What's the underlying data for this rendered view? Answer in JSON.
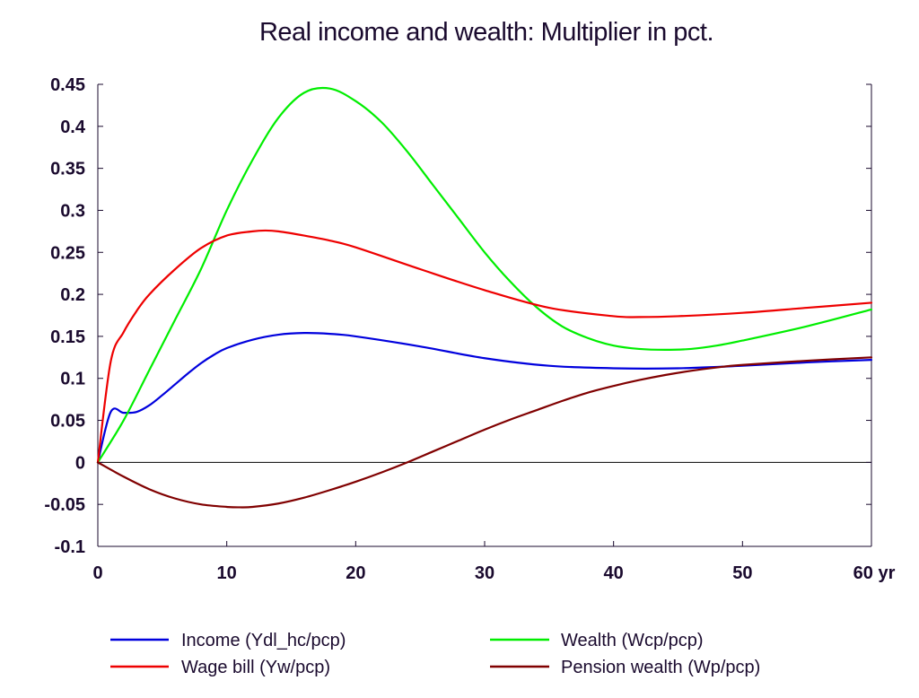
{
  "chart_data": {
    "type": "line",
    "title": "Real income and wealth: Multiplier in pct.",
    "xlabel": "",
    "ylabel": "",
    "x_unit_label": "yr",
    "xlim": [
      0,
      60
    ],
    "ylim": [
      -0.1,
      0.45
    ],
    "x_ticks": [
      0,
      10,
      20,
      30,
      40,
      50,
      60
    ],
    "y_ticks": [
      -0.1,
      -0.05,
      0,
      0.05,
      0.1,
      0.15,
      0.2,
      0.25,
      0.3,
      0.35,
      0.4,
      0.45
    ],
    "y_tick_labels": [
      "-0.1",
      "-0.05",
      "0",
      "0.05",
      "0.1",
      "0.15",
      "0.2",
      "0.25",
      "0.3",
      "0.35",
      "0.4",
      "0.45"
    ],
    "x_tick_labels": [
      "0",
      "10",
      "20",
      "30",
      "40",
      "50",
      "60 yr"
    ],
    "grid": false,
    "zero_line": true,
    "legend_position": "bottom",
    "series": [
      {
        "name": "Income (Ydl_hc/pcp)",
        "color": "#0000dd",
        "x": [
          0,
          1,
          2,
          3,
          4,
          5,
          6,
          7,
          8,
          9,
          10,
          12,
          14,
          16,
          18,
          20,
          25,
          30,
          35,
          40,
          45,
          50,
          55,
          60
        ],
        "y": [
          0,
          0.06,
          0.059,
          0.06,
          0.068,
          0.08,
          0.093,
          0.106,
          0.118,
          0.128,
          0.136,
          0.146,
          0.152,
          0.154,
          0.153,
          0.15,
          0.138,
          0.124,
          0.115,
          0.112,
          0.112,
          0.115,
          0.119,
          0.122
        ]
      },
      {
        "name": "Wealth (Wcp/pcp)",
        "color": "#00ee00",
        "x": [
          0,
          2,
          4,
          6,
          8,
          10,
          12,
          14,
          16,
          18,
          20,
          22,
          24,
          26,
          28,
          30,
          32,
          34,
          36,
          38,
          40,
          42,
          44,
          46,
          48,
          50,
          55,
          60
        ],
        "y": [
          0,
          0.05,
          0.11,
          0.17,
          0.23,
          0.3,
          0.36,
          0.41,
          0.44,
          0.445,
          0.43,
          0.405,
          0.37,
          0.33,
          0.29,
          0.25,
          0.215,
          0.185,
          0.162,
          0.148,
          0.139,
          0.135,
          0.134,
          0.135,
          0.139,
          0.145,
          0.162,
          0.182
        ]
      },
      {
        "name": "Wage bill (Yw/pcp)",
        "color": "#ee0000",
        "x": [
          0,
          1,
          2,
          3,
          4,
          6,
          8,
          10,
          12,
          13,
          14,
          16,
          18,
          20,
          25,
          30,
          35,
          40,
          42,
          45,
          50,
          55,
          60
        ],
        "y": [
          0,
          0.12,
          0.155,
          0.18,
          0.2,
          0.23,
          0.255,
          0.27,
          0.275,
          0.276,
          0.275,
          0.27,
          0.264,
          0.256,
          0.23,
          0.205,
          0.184,
          0.174,
          0.173,
          0.174,
          0.178,
          0.184,
          0.19
        ]
      },
      {
        "name": "Pension wealth (Wp/pcp)",
        "color": "#800000",
        "x": [
          0,
          2,
          4,
          6,
          8,
          10,
          11,
          12,
          14,
          16,
          18,
          20,
          22,
          24,
          26,
          28,
          30,
          32,
          34,
          36,
          38,
          40,
          42,
          44,
          46,
          48,
          50,
          55,
          60
        ],
        "y": [
          0,
          -0.017,
          -0.032,
          -0.043,
          -0.05,
          -0.053,
          -0.0535,
          -0.053,
          -0.049,
          -0.042,
          -0.033,
          -0.023,
          -0.012,
          0.0,
          0.013,
          0.026,
          0.039,
          0.051,
          0.062,
          0.073,
          0.083,
          0.091,
          0.098,
          0.104,
          0.109,
          0.113,
          0.116,
          0.121,
          0.125
        ]
      }
    ],
    "legend_order": [
      0,
      2,
      1,
      3
    ]
  }
}
